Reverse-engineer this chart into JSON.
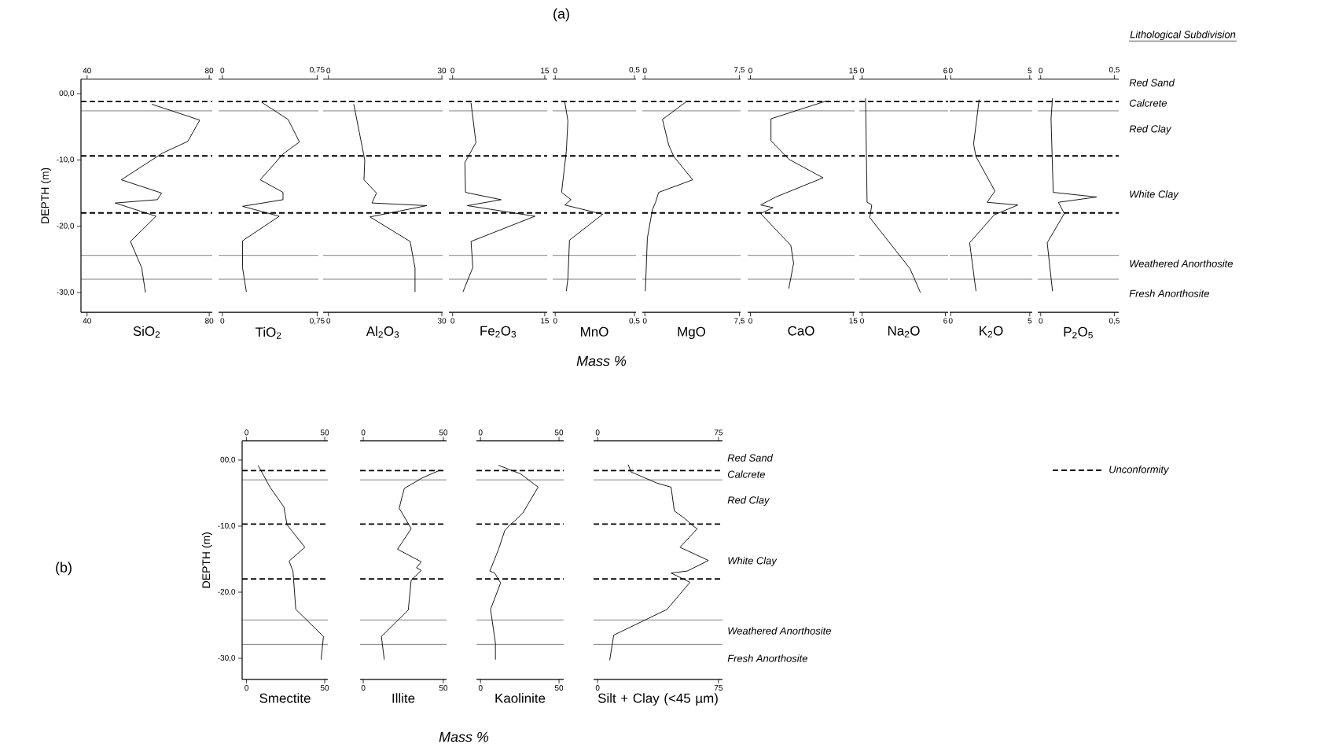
{
  "chart_data": [
    {
      "type": "line",
      "xlabel": "SiO$_{2}$",
      "ylabel": "DEPTH (m)",
      "xlim": [
        38,
        81
      ],
      "xticks": [
        40,
        80
      ],
      "x2lim": [
        38,
        81
      ],
      "x2ticks": [
        40,
        80
      ],
      "ylim": [
        -33,
        2.2
      ],
      "yticks": [
        {
          "value": 0,
          "label": "00,0"
        },
        {
          "value": -10,
          "label": "-10,0"
        },
        {
          "value": -20,
          "label": "-20,0"
        },
        {
          "value": -30,
          "label": "-30,0"
        }
      ],
      "series": [
        {
          "color": "#000000",
          "x": [
            61.2,
            76.9,
            73,
            64.6,
            51.2,
            64.4,
            63,
            49.2,
            62.6,
            54.2,
            57.9,
            59.1
          ],
          "values": [
            -1.6,
            -4,
            -7.2,
            -9,
            -13,
            -15,
            -16,
            -16.5,
            -18.5,
            -22.3,
            -26.3,
            -30
          ]
        }
      ],
      "ref_lines": [
        {
          "axis": "y",
          "value": -1.2,
          "line_style": "dashed"
        },
        {
          "axis": "y",
          "value": -9.4,
          "line_style": "dashed"
        },
        {
          "axis": "y",
          "value": -18,
          "line_style": "dashed"
        },
        {
          "axis": "y",
          "value": -2.6,
          "line_style": "solid"
        },
        {
          "axis": "y",
          "value": -24.4,
          "line_style": "solid"
        },
        {
          "axis": "y",
          "value": -28,
          "line_style": "solid"
        }
      ]
    },
    {
      "type": "line",
      "xlabel": "TiO$_{2}$",
      "xlim": [
        -0.03,
        0.76
      ],
      "xticks": [
        0,
        {
          "value": 0.75,
          "label": "0,75"
        }
      ],
      "x2lim": [
        -0.03,
        0.76
      ],
      "x2ticks": [
        0,
        {
          "value": 0.75,
          "label": "0,75"
        }
      ],
      "ylim": [
        -33,
        2.2
      ],
      "tick_labels": "x",
      "series": [
        {
          "color": "#000000",
          "x": [
            0.31,
            0.52,
            0.61,
            0.48,
            0.3,
            0.48,
            0.48,
            0.16,
            0.45,
            0.16,
            0.16,
            0.19
          ],
          "values": [
            -1.3,
            -3.9,
            -7.3,
            -9.1,
            -13,
            -14.9,
            -16,
            -17,
            -18.5,
            -22.2,
            -26.3,
            -29.9
          ]
        }
      ],
      "ref_lines": [
        {
          "axis": "y",
          "value": -1.2,
          "line_style": "dashed"
        },
        {
          "axis": "y",
          "value": -9.4,
          "line_style": "dashed"
        },
        {
          "axis": "y",
          "value": -18,
          "line_style": "dashed"
        },
        {
          "axis": "y",
          "value": -2.6,
          "line_style": "solid"
        },
        {
          "axis": "y",
          "value": -24.4,
          "line_style": "solid"
        },
        {
          "axis": "y",
          "value": -28,
          "line_style": "solid"
        }
      ]
    },
    {
      "type": "line",
      "xlabel": "Al$_{2}$O$_{3}$",
      "xlim": [
        -1.4,
        30.2
      ],
      "xticks": [
        0,
        30
      ],
      "x2lim": [
        -1.4,
        30.2
      ],
      "x2ticks": [
        0,
        30
      ],
      "ylim": [
        -33,
        2.2
      ],
      "tick_labels": "x",
      "series": [
        {
          "color": "#000000",
          "x": [
            6.7,
            9.3,
            9.6,
            9.4,
            12.7,
            11.5,
            26,
            11,
            21.6,
            22.9,
            22.9
          ],
          "values": [
            -1.6,
            -9.1,
            -10.1,
            -13,
            -15,
            -16.5,
            -16.9,
            -18.6,
            -22.3,
            -26.3,
            -29.9
          ]
        }
      ],
      "ref_lines": [
        {
          "axis": "y",
          "value": -1.2,
          "line_style": "dashed"
        },
        {
          "axis": "y",
          "value": -9.4,
          "line_style": "dashed"
        },
        {
          "axis": "y",
          "value": -18,
          "line_style": "dashed"
        },
        {
          "axis": "y",
          "value": -2.6,
          "line_style": "solid"
        },
        {
          "axis": "y",
          "value": -24.4,
          "line_style": "solid"
        },
        {
          "axis": "y",
          "value": -28,
          "line_style": "solid"
        }
      ]
    },
    {
      "type": "line",
      "xlabel": "Fe$_{2}$O$_{3}$",
      "xlim": [
        -0.6,
        15.4
      ],
      "xticks": [
        0,
        15
      ],
      "x2lim": [
        -0.6,
        15.4
      ],
      "x2ticks": [
        0,
        15
      ],
      "ylim": [
        -33,
        2.2
      ],
      "tick_labels": "x",
      "series": [
        {
          "color": "#000000",
          "x": [
            3,
            3.8,
            2,
            2.1,
            7.9,
            2.4,
            13.4,
            3,
            3.3,
            1.7
          ],
          "values": [
            -1.4,
            -7.4,
            -10.4,
            -14.9,
            -16,
            -16.9,
            -18.5,
            -22.3,
            -26.2,
            -29.9
          ]
        }
      ],
      "ref_lines": [
        {
          "axis": "y",
          "value": -1.2,
          "line_style": "dashed"
        },
        {
          "axis": "y",
          "value": -9.4,
          "line_style": "dashed"
        },
        {
          "axis": "y",
          "value": -18,
          "line_style": "dashed"
        },
        {
          "axis": "y",
          "value": -2.6,
          "line_style": "solid"
        },
        {
          "axis": "y",
          "value": -24.4,
          "line_style": "solid"
        },
        {
          "axis": "y",
          "value": -28,
          "line_style": "solid"
        }
      ]
    },
    {
      "type": "line",
      "xlabel": "MnO",
      "xlim": [
        -0.016,
        0.51
      ],
      "xticks": [
        0,
        {
          "value": 0.5,
          "label": "0,5"
        }
      ],
      "x2lim": [
        -0.016,
        0.51
      ],
      "x2ticks": [
        0,
        {
          "value": 0.5,
          "label": "0,5"
        }
      ],
      "ylim": [
        -33,
        2.2
      ],
      "tick_labels": "x",
      "annotations": [
        "(a)",
        "Mass %"
      ],
      "series": [
        {
          "color": "#000000",
          "x": [
            0.06,
            0.08,
            0.07,
            0.04,
            0.1,
            0.06,
            0.3,
            0.09,
            0.08,
            0.07
          ],
          "values": [
            -1.2,
            -4.1,
            -8.7,
            -14.9,
            -16,
            -16.8,
            -18.2,
            -22.1,
            -27.9,
            -29.8
          ]
        }
      ],
      "ref_lines": [
        {
          "axis": "y",
          "value": -1.2,
          "line_style": "dashed"
        },
        {
          "axis": "y",
          "value": -9.4,
          "line_style": "dashed"
        },
        {
          "axis": "y",
          "value": -18,
          "line_style": "dashed"
        },
        {
          "axis": "y",
          "value": -2.6,
          "line_style": "solid"
        },
        {
          "axis": "y",
          "value": -24.4,
          "line_style": "solid"
        },
        {
          "axis": "y",
          "value": -28,
          "line_style": "solid"
        }
      ]
    },
    {
      "type": "line",
      "xlabel": "MgO",
      "xlim": [
        -0.2,
        7.6
      ],
      "xticks": [
        0,
        {
          "value": 7.5,
          "label": "7,5"
        }
      ],
      "x2lim": [
        -0.2,
        7.6
      ],
      "x2ticks": [
        0,
        {
          "value": 7.5,
          "label": "7,5"
        }
      ],
      "ylim": [
        -33,
        2.2
      ],
      "tick_labels": "x",
      "series": [
        {
          "color": "#000000",
          "x": [
            3.3,
            1.4,
            1.9,
            2.3,
            3.8,
            1.1,
            0.85,
            0.6,
            0.2,
            0.04
          ],
          "values": [
            -1.2,
            -3.9,
            -7.8,
            -9.5,
            -13,
            -14.9,
            -16.4,
            -17.5,
            -21.8,
            -29.8
          ]
        }
      ],
      "ref_lines": [
        {
          "axis": "y",
          "value": -1.2,
          "line_style": "dashed"
        },
        {
          "axis": "y",
          "value": -9.4,
          "line_style": "dashed"
        },
        {
          "axis": "y",
          "value": -18,
          "line_style": "dashed"
        },
        {
          "axis": "y",
          "value": -2.6,
          "line_style": "solid"
        },
        {
          "axis": "y",
          "value": -24.4,
          "line_style": "solid"
        },
        {
          "axis": "y",
          "value": -28,
          "line_style": "solid"
        }
      ]
    },
    {
      "type": "line",
      "xlabel": "CaO",
      "xlim": [
        -0.4,
        15.2
      ],
      "xticks": [
        0,
        15
      ],
      "x2lim": [
        -0.4,
        15.2
      ],
      "x2ticks": [
        0,
        15
      ],
      "ylim": [
        -33,
        2.2
      ],
      "tick_labels": "x",
      "series": [
        {
          "color": "#000000",
          "x": [
            11.1,
            3,
            3,
            5.6,
            10.6,
            3.7,
            1.5,
            3.3,
            1.5,
            5.9,
            6.3,
            5.6
          ],
          "values": [
            -1.1,
            -3.8,
            -7.1,
            -9.9,
            -12.7,
            -15.6,
            -16.8,
            -17.2,
            -18.1,
            -22.9,
            -25.6,
            -29.4
          ]
        }
      ],
      "ref_lines": [
        {
          "axis": "y",
          "value": -1.2,
          "line_style": "dashed"
        },
        {
          "axis": "y",
          "value": -9.4,
          "line_style": "dashed"
        },
        {
          "axis": "y",
          "value": -18,
          "line_style": "dashed"
        },
        {
          "axis": "y",
          "value": -2.6,
          "line_style": "solid"
        },
        {
          "axis": "y",
          "value": -24.4,
          "line_style": "solid"
        },
        {
          "axis": "y",
          "value": -28,
          "line_style": "solid"
        }
      ]
    },
    {
      "type": "line",
      "xlabel": "Na$_{2}$O",
      "xlim": [
        -0.2,
        6.2
      ],
      "xticks": [
        0,
        6
      ],
      "x2lim": [
        -0.2,
        6.2
      ],
      "x2ticks": [
        0,
        6
      ],
      "ylim": [
        -33,
        2.2
      ],
      "tick_labels": "x",
      "series": [
        {
          "color": "#000000",
          "x": [
            0.25,
            0.36,
            0.7,
            0.55,
            3.45,
            4.2
          ],
          "values": [
            -0.7,
            -16.4,
            -16.8,
            -18.7,
            -26.4,
            -30
          ]
        }
      ],
      "ref_lines": [
        {
          "axis": "y",
          "value": -1.2,
          "line_style": "dashed"
        },
        {
          "axis": "y",
          "value": -9.4,
          "line_style": "dashed"
        },
        {
          "axis": "y",
          "value": -18,
          "line_style": "dashed"
        },
        {
          "axis": "y",
          "value": -2.6,
          "line_style": "solid"
        },
        {
          "axis": "y",
          "value": -24.4,
          "line_style": "solid"
        },
        {
          "axis": "y",
          "value": -28,
          "line_style": "solid"
        }
      ]
    },
    {
      "type": "line",
      "xlabel": "K$_{2}$O",
      "xlim": [
        -0.06,
        5.16
      ],
      "xticks": [
        0,
        5
      ],
      "x2lim": [
        -0.06,
        5.16
      ],
      "x2ticks": [
        0,
        5
      ],
      "ylim": [
        -33,
        2.2
      ],
      "tick_labels": "x",
      "series": [
        {
          "color": "#000000",
          "x": [
            1.8,
            1.45,
            1.6,
            2.8,
            2.3,
            4.25,
            2.75,
            1.2,
            1.6
          ],
          "values": [
            -0.9,
            -7.6,
            -9.5,
            -14.7,
            -16.4,
            -16.8,
            -18.3,
            -22.5,
            -29.8
          ]
        }
      ],
      "ref_lines": [
        {
          "axis": "y",
          "value": -1.2,
          "line_style": "dashed"
        },
        {
          "axis": "y",
          "value": -9.4,
          "line_style": "dashed"
        },
        {
          "axis": "y",
          "value": -18,
          "line_style": "dashed"
        },
        {
          "axis": "y",
          "value": -2.6,
          "line_style": "solid"
        },
        {
          "axis": "y",
          "value": -24.4,
          "line_style": "solid"
        },
        {
          "axis": "y",
          "value": -28,
          "line_style": "solid"
        }
      ]
    },
    {
      "type": "line",
      "xlabel": "P$_{2}$O$_{5}$",
      "xlim": [
        -0.02,
        0.53
      ],
      "xticks": [
        0,
        {
          "value": 0.5,
          "label": "0,5"
        }
      ],
      "x2lim": [
        -0.02,
        0.53
      ],
      "x2ticks": [
        0,
        {
          "value": 0.5,
          "label": "0,5"
        }
      ],
      "ylim": [
        -33,
        2.2
      ],
      "tick_labels": "x",
      "annotations": [
        "Red Sand",
        "Calcrete",
        "Red Clay",
        "White Clay",
        "Weathered Anorthosite",
        "Fresh Anorthosite",
        "Lithological Subdivision"
      ],
      "series": [
        {
          "color": "#000000",
          "x": [
            0.08,
            0.07,
            0.085,
            0.38,
            0.12,
            0.16,
            0.044,
            0.08
          ],
          "values": [
            -0.7,
            -3.8,
            -14.9,
            -15.6,
            -16.4,
            -18.1,
            -22.5,
            -29.8
          ]
        }
      ],
      "ref_lines": [
        {
          "axis": "y",
          "value": -1.2,
          "line_style": "dashed"
        },
        {
          "axis": "y",
          "value": -9.4,
          "line_style": "dashed"
        },
        {
          "axis": "y",
          "value": -18,
          "line_style": "dashed"
        },
        {
          "axis": "y",
          "value": -2.6,
          "line_style": "solid"
        },
        {
          "axis": "y",
          "value": -24.4,
          "line_style": "solid"
        },
        {
          "axis": "y",
          "value": -28,
          "line_style": "solid"
        }
      ]
    },
    {
      "type": "line",
      "xlabel": "Smectite",
      "ylabel": "DEPTH (m)",
      "xlim": [
        -2.8,
        52
      ],
      "xticks": [
        0,
        50
      ],
      "x2lim": [
        -2.8,
        52
      ],
      "x2ticks": [
        0,
        50
      ],
      "ylim": [
        -33.2,
        2.9
      ],
      "yticks": [
        {
          "value": 0,
          "label": "00,0"
        },
        {
          "value": -10,
          "label": "-10,0"
        },
        {
          "value": -20,
          "label": "-20,0"
        },
        {
          "value": -30,
          "label": "-30,0"
        }
      ],
      "annotations": [
        "(b)"
      ],
      "series": [
        {
          "color": "#000000",
          "x": [
            7.4,
            15,
            23.9,
            25.9,
            37.3,
            27.2,
            29.7,
            31.5,
            49.2,
            47.7
          ],
          "values": [
            -0.8,
            -4.1,
            -7.1,
            -9.8,
            -13.2,
            -15.3,
            -16.8,
            -22.6,
            -26.7,
            -30.2
          ]
        }
      ],
      "ref_lines": [
        {
          "axis": "y",
          "value": -1.6,
          "line_style": "dashed"
        },
        {
          "axis": "y",
          "value": -9.7,
          "line_style": "dashed"
        },
        {
          "axis": "y",
          "value": -18,
          "line_style": "dashed"
        },
        {
          "axis": "y",
          "value": -3,
          "line_style": "solid"
        },
        {
          "axis": "y",
          "value": -24.2,
          "line_style": "solid"
        },
        {
          "axis": "y",
          "value": -27.9,
          "line_style": "solid"
        }
      ]
    },
    {
      "type": "line",
      "xlabel": "Illite",
      "xlim": [
        -2,
        52
      ],
      "xticks": [
        0,
        50
      ],
      "x2lim": [
        -2,
        52
      ],
      "x2ticks": [
        0,
        50
      ],
      "ylim": [
        -33.2,
        2.9
      ],
      "tick_labels": "x",
      "annotations": [
        "Mass %"
      ],
      "series": [
        {
          "color": "#000000",
          "x": [
            48.2,
            36.9,
            25.6,
            22.4,
            26.9,
            29.9,
            21.4,
            36.2,
            33.2,
            36.2,
            29.9,
            28.1,
            11.3,
            13.1
          ],
          "values": [
            -1.5,
            -2.7,
            -4.3,
            -7.3,
            -9.1,
            -10.4,
            -13.5,
            -15.4,
            -16.3,
            -16.7,
            -18.2,
            -22.7,
            -26.7,
            -30.2
          ]
        }
      ],
      "ref_lines": [
        {
          "axis": "y",
          "value": -1.6,
          "line_style": "dashed"
        },
        {
          "axis": "y",
          "value": -9.7,
          "line_style": "dashed"
        },
        {
          "axis": "y",
          "value": -18,
          "line_style": "dashed"
        },
        {
          "axis": "y",
          "value": -3,
          "line_style": "solid"
        },
        {
          "axis": "y",
          "value": -24.2,
          "line_style": "solid"
        },
        {
          "axis": "y",
          "value": -27.9,
          "line_style": "solid"
        }
      ]
    },
    {
      "type": "line",
      "xlabel": "Kaolinite",
      "xlim": [
        -2.6,
        53
      ],
      "xticks": [
        0,
        50
      ],
      "x2lim": [
        -2.6,
        53
      ],
      "x2ticks": [
        0,
        50
      ],
      "ylim": [
        -33.2,
        2.9
      ],
      "tick_labels": "x",
      "series": [
        {
          "color": "#000000",
          "x": [
            11.5,
            25.6,
            36.7,
            27,
            21.8,
            18.7,
            15.4,
            11.5,
            8.5,
            5.9,
            9,
            12.8,
            6.4,
            9.5,
            9.5
          ],
          "values": [
            -0.8,
            -2.1,
            -4.1,
            -8,
            -9.2,
            -9.8,
            -10.7,
            -13.5,
            -15.3,
            -16.8,
            -17.1,
            -18.6,
            -22.6,
            -27.7,
            -30.2
          ]
        }
      ],
      "ref_lines": [
        {
          "axis": "y",
          "value": -1.6,
          "line_style": "dashed"
        },
        {
          "axis": "y",
          "value": -9.7,
          "line_style": "dashed"
        },
        {
          "axis": "y",
          "value": -18,
          "line_style": "dashed"
        },
        {
          "axis": "y",
          "value": -3,
          "line_style": "solid"
        },
        {
          "axis": "y",
          "value": -24.2,
          "line_style": "solid"
        },
        {
          "axis": "y",
          "value": -27.9,
          "line_style": "solid"
        }
      ]
    },
    {
      "type": "line",
      "xlabel": "Silt + Clay (<45 µm)",
      "xlim": [
        -2.5,
        77.5
      ],
      "xticks": [
        0,
        75
      ],
      "x2lim": [
        -2.5,
        77.5
      ],
      "x2ticks": [
        0,
        75
      ],
      "ylim": [
        -33.2,
        2.9
      ],
      "tick_labels": "x",
      "annotations": [
        "Red Sand",
        "Calcrete",
        "Red Clay",
        "White Clay",
        "Weathered Anorthosite",
        "Fresh Anorthosite",
        "Unconformity"
      ],
      "series": [
        {
          "color": "#000000",
          "x": [
            19,
            20.7,
            36.9,
            45.6,
            47.6,
            54.4,
            59.4,
            61.8,
            51.1,
            68.8,
            55.6,
            45.6,
            57.3,
            43.1,
            10,
            7.5
          ],
          "values": [
            -0.7,
            -1.8,
            -3.5,
            -4.1,
            -7.7,
            -8.9,
            -10,
            -10.4,
            -13.2,
            -15.2,
            -16.8,
            -17.1,
            -18.5,
            -22.6,
            -26.5,
            -30.3
          ]
        }
      ],
      "ref_lines": [
        {
          "axis": "y",
          "value": -1.6,
          "line_style": "dashed"
        },
        {
          "axis": "y",
          "value": -9.7,
          "line_style": "dashed"
        },
        {
          "axis": "y",
          "value": -18,
          "line_style": "dashed"
        },
        {
          "axis": "y",
          "value": -3,
          "line_style": "solid"
        },
        {
          "axis": "y",
          "value": -24.2,
          "line_style": "solid"
        },
        {
          "axis": "y",
          "value": -27.9,
          "line_style": "solid"
        }
      ]
    }
  ]
}
